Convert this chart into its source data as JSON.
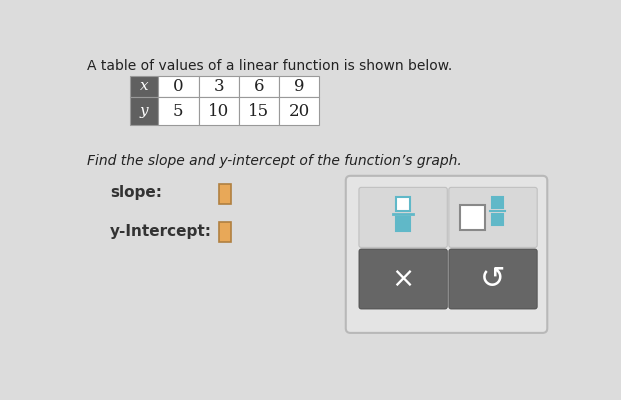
{
  "title": "A table of values of a linear function is shown below.",
  "subtitle": "Find the slope and y-intercept of the function’s graph.",
  "table_x_values": [
    "x",
    "0",
    "3",
    "6",
    "9"
  ],
  "table_y_values": [
    "y",
    "5",
    "10",
    "15",
    "20"
  ],
  "slope_label": "slope:",
  "yint_label": "y-Intercept:",
  "bg_color": "#dcdcdc",
  "table_header_color": "#606060",
  "table_cell_color": "#ffffff",
  "table_border_color": "#999999",
  "input_box_color": "#e8a858",
  "input_box_border": "#b08040",
  "panel_bg": "#e0e0e0",
  "panel_border": "#c0c0c0",
  "panel_dark_btn": "#666666",
  "panel_light_btn": "#d8d8d8",
  "panel_light_btn_border": "#c0c0c0",
  "fraction_color": "#60b8c8",
  "large_sq_color": "#888888",
  "title_fontsize": 10,
  "subtitle_fontsize": 10,
  "label_fontsize": 10
}
